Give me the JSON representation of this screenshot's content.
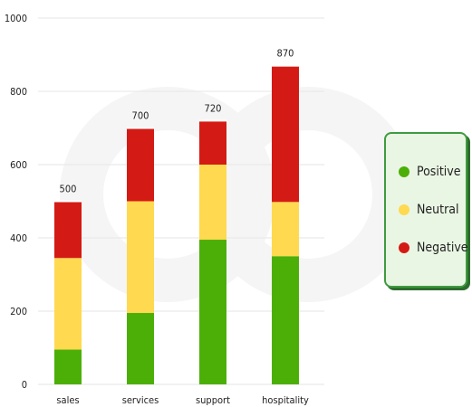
{
  "chart_data": {
    "type": "bar",
    "stacked": true,
    "title": "",
    "xlabel": "",
    "ylabel": "",
    "ylim": [
      0,
      1000
    ],
    "yticks": [
      0,
      200,
      400,
      600,
      800,
      1000
    ],
    "grid": true,
    "legend_placement": "right",
    "categories": [
      "sales",
      "services",
      "support",
      "hospitality"
    ],
    "totals": [
      500,
      700,
      720,
      870
    ],
    "series": [
      {
        "name": "Positive",
        "color": "#4caf08",
        "values": [
          95,
          195,
          395,
          350
        ]
      },
      {
        "name": "Neutral",
        "color": "#ffd94f",
        "values": [
          250,
          305,
          205,
          148
        ]
      },
      {
        "name": "Negative",
        "color": "#d41a14",
        "values": [
          155,
          200,
          120,
          372
        ]
      }
    ]
  }
}
